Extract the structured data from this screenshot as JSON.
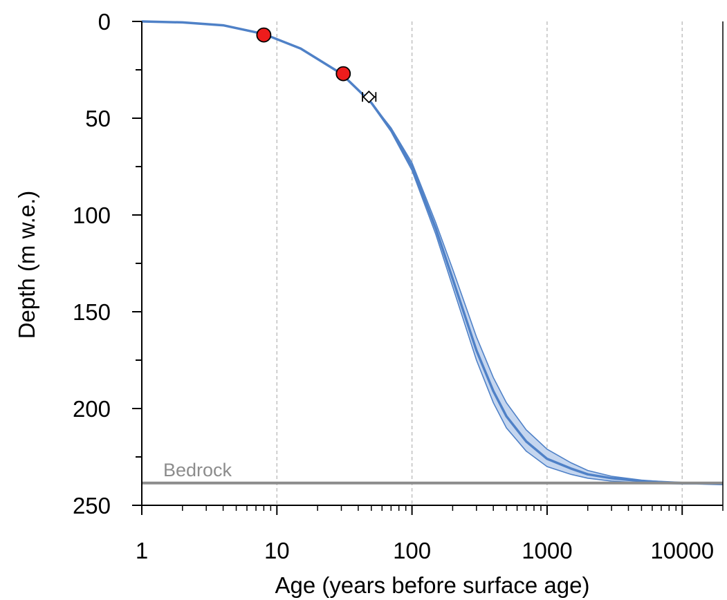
{
  "chart_data": {
    "type": "line",
    "xlabel": "Age (years before surface age)",
    "ylabel": "Depth (m w.e.)",
    "xscale": "log",
    "xlim": [
      1,
      20000
    ],
    "ylim": [
      0,
      250
    ],
    "y_inverted": true,
    "x_ticks": [
      1,
      10,
      100,
      1000,
      10000
    ],
    "x_tick_labels": [
      "1",
      "10",
      "100",
      "1000",
      "10000"
    ],
    "y_ticks": [
      0,
      50,
      100,
      150,
      200,
      250
    ],
    "y_tick_labels": [
      "0",
      "50",
      "100",
      "150",
      "200",
      "250"
    ],
    "grid": "vertical dashed at decades",
    "series_color": "#4f81c7",
    "band_color": "#c5d6ef",
    "series": [
      {
        "x": [
          1,
          2,
          4,
          8,
          15,
          30,
          50,
          70,
          100,
          150,
          200,
          300,
          400,
          500,
          700,
          1000,
          1500,
          2000,
          3000,
          5000,
          10000,
          20000
        ],
        "y": [
          0,
          0.5,
          2,
          6.5,
          14,
          27,
          42,
          56,
          75,
          107,
          133,
          170,
          191,
          204,
          217,
          226,
          231,
          234,
          236,
          237.5,
          238.5,
          239
        ],
        "lower": [
          0,
          0.5,
          2,
          6.5,
          14,
          27,
          42,
          55,
          73,
          104,
          128,
          163,
          184,
          197,
          211,
          221,
          228,
          232,
          235,
          237,
          238.5,
          239
        ],
        "upper": [
          0,
          0.5,
          2,
          6.5,
          14,
          27,
          42.5,
          57,
          77,
          110,
          137,
          175,
          197,
          210,
          222,
          230,
          234,
          236,
          237.5,
          238.5,
          239,
          239
        ]
      }
    ],
    "markers": [
      {
        "shape": "circle",
        "color": "#ee1c1c",
        "x": 8,
        "y": 7
      },
      {
        "shape": "circle",
        "color": "#ee1c1c",
        "x": 31,
        "y": 27
      },
      {
        "shape": "diamond",
        "color": "#ffffff",
        "x": 48,
        "y": 39,
        "xerr": [
          43,
          54
        ]
      }
    ],
    "reference_line": {
      "y": 238.5,
      "label": "Bedrock",
      "color": "#8c8c8c"
    }
  }
}
